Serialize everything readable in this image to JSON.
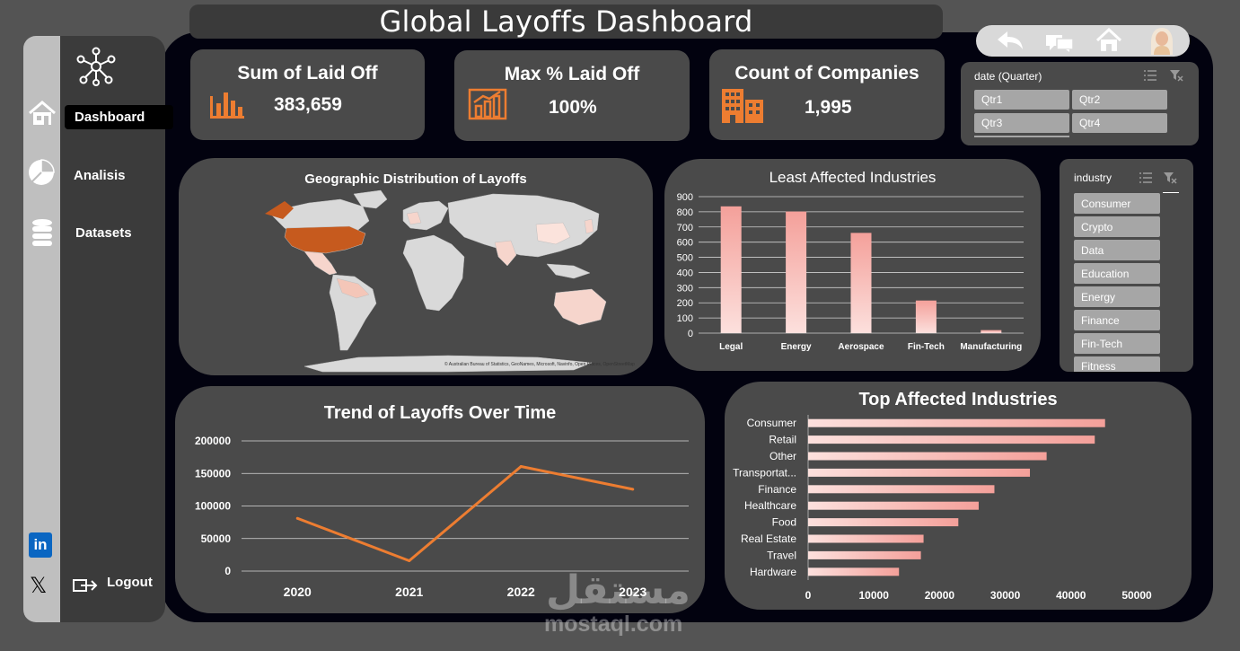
{
  "title": "Global Layoffs Dashboard",
  "sidebar": {
    "items": [
      {
        "label": "Dashboard",
        "icon": "home-icon"
      },
      {
        "label": "Analisis",
        "icon": "pie-chart-icon"
      },
      {
        "label": "Datasets",
        "icon": "database-icon"
      }
    ],
    "logout": "Logout",
    "social": [
      "linkedin-icon",
      "x-icon"
    ]
  },
  "toolbar": {
    "icons": [
      "back-arrow-icon",
      "chat-icon",
      "home-icon",
      "avatar"
    ]
  },
  "kpis": [
    {
      "title": "Sum of Laid Off",
      "value": "383,659",
      "icon": "bar-chart-icon"
    },
    {
      "title": "Max % Laid Off",
      "value": "100%",
      "icon": "growth-chart-icon"
    },
    {
      "title": "Count of Companies",
      "value": "1,995",
      "icon": "buildings-icon"
    }
  ],
  "date_slicer": {
    "title": "date (Quarter)",
    "options": [
      "Qtr1",
      "Qtr2",
      "Qtr3",
      "Qtr4"
    ]
  },
  "industry_slicer": {
    "title": "industry",
    "options": [
      "Consumer",
      "Crypto",
      "Data",
      "Education",
      "Energy",
      "Finance",
      "Fin-Tech",
      "Fitness"
    ]
  },
  "map": {
    "title": "Geographic Distribution of Layoffs",
    "attribution": "© Australian Bureau of Statistics, GeoNames, Microsoft, Navinfo, Open Places, OpenStreetMap"
  },
  "watermark": {
    "arabic": "مستقل",
    "latin": "mostaql.com"
  },
  "colors": {
    "accent": "#ed7d31",
    "bar": "#f4a7a0",
    "stage": "#02020f",
    "card": "#4a4a4a",
    "map_high": "#c65a1e"
  },
  "chart_data": [
    {
      "type": "bar",
      "title": "Least Affected Industries",
      "categories": [
        "Legal",
        "Energy",
        "Aerospace",
        "Fin-Tech",
        "Manufacturing"
      ],
      "values": [
        836,
        802,
        661,
        215,
        20
      ],
      "ylim": [
        0,
        900
      ],
      "yticks": [
        0,
        100,
        200,
        300,
        400,
        500,
        600,
        700,
        800,
        900
      ],
      "grid": true
    },
    {
      "type": "line",
      "title": "Trend of Layoffs Over Time",
      "x": [
        "2020",
        "2021",
        "2022",
        "2023"
      ],
      "values": [
        80998,
        15823,
        160661,
        125677
      ],
      "ylim": [
        0,
        200000
      ],
      "yticks": [
        0,
        50000,
        100000,
        150000,
        200000
      ],
      "grid": true
    },
    {
      "type": "bar",
      "orientation": "horizontal",
      "title": "Top Affected Industries",
      "categories": [
        "Consumer",
        "Retail",
        "Other",
        "Transportat...",
        "Finance",
        "Healthcare",
        "Food",
        "Real Estate",
        "Travel",
        "Hardware"
      ],
      "values": [
        45182,
        43613,
        36289,
        33748,
        28344,
        25953,
        22855,
        17565,
        17159,
        13828
      ],
      "xlim": [
        0,
        50000
      ],
      "xticks": [
        0,
        10000,
        20000,
        30000,
        40000,
        50000
      ]
    }
  ]
}
